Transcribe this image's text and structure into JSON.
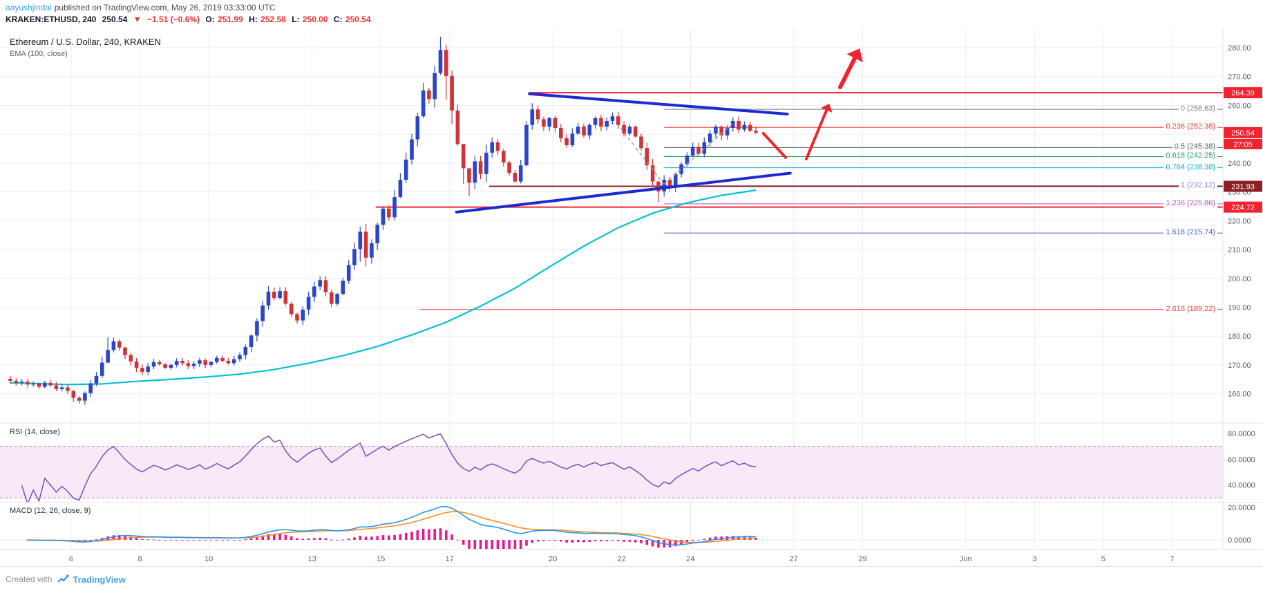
{
  "header": {
    "author": "aayushjindal",
    "publish_info": "published on TradingView.com, May 26, 2019 03:33:00 UTC",
    "symbol_line": {
      "symbol": "KRAKEN:ETHUSD, 240",
      "last_price": "250.54",
      "arrow": "▼",
      "change": "−1.51 (−0.6%)",
      "open_label": "O:",
      "open": "251.99",
      "high_label": "H:",
      "high": "252.58",
      "low_label": "L:",
      "low": "250.00",
      "close_label": "C:",
      "close": "250.54"
    }
  },
  "legends": {
    "main": "Ethereum / U.S. Dollar, 240, KRAKEN",
    "ema": "EMA (100, close)",
    "rsi": "RSI (14, close)",
    "macd": "MACD (12, 26, close, 9)"
  },
  "footer": {
    "created_with": "Created with",
    "brand": "TradingView"
  },
  "chart_data": {
    "type": "candlestick",
    "title": "Ethereum / U.S. Dollar, 240, KRAKEN",
    "exchange": "KRAKEN",
    "symbol": "ETHUSD",
    "interval_minutes": 240,
    "price_axis": {
      "ticks": [
        160,
        170,
        180,
        190,
        200,
        210,
        220,
        230,
        240,
        250,
        260,
        270,
        280
      ],
      "ylim": [
        151,
        287
      ]
    },
    "time_axis": {
      "ticks": [
        {
          "label": "6",
          "i": 10.6
        },
        {
          "label": "8",
          "i": 22.6
        },
        {
          "label": "10",
          "i": 34.6
        },
        {
          "label": "13",
          "i": 52.6
        },
        {
          "label": "15",
          "i": 64.6
        },
        {
          "label": "17",
          "i": 76.6
        },
        {
          "label": "20",
          "i": 94.6
        },
        {
          "label": "22",
          "i": 106.6
        },
        {
          "label": "24",
          "i": 118.6
        },
        {
          "label": "27",
          "i": 136.6
        },
        {
          "label": "29",
          "i": 148.6
        },
        {
          "label": "Jun",
          "i": 166.6
        },
        {
          "label": "3",
          "i": 178.6
        },
        {
          "label": "5",
          "i": 190.6
        },
        {
          "label": "7",
          "i": 202.6
        }
      ]
    },
    "candles": {
      "open_first": 165.2,
      "closes": [
        164.5,
        163.8,
        164.2,
        163.2,
        163.6,
        162.4,
        163.8,
        162.9,
        161.6,
        162.2,
        161.0,
        158.6,
        157.6,
        160.2,
        163.6,
        166.2,
        170.8,
        175.2,
        178.2,
        176.0,
        173.4,
        171.2,
        169.0,
        167.6,
        169.4,
        171.0,
        170.2,
        169.0,
        170.0,
        171.4,
        170.6,
        169.6,
        170.4,
        171.6,
        170.0,
        171.0,
        172.4,
        171.4,
        170.6,
        172.0,
        173.4,
        176.2,
        180.2,
        185.2,
        190.6,
        195.4,
        193.2,
        195.6,
        191.2,
        187.6,
        185.4,
        189.2,
        193.6,
        197.2,
        199.4,
        195.2,
        191.2,
        194.6,
        199.2,
        204.6,
        210.2,
        216.2,
        207.2,
        212.2,
        218.6,
        224.2,
        221.2,
        228.2,
        234.2,
        241.2,
        248.2,
        256.2,
        265.2,
        262.2,
        271.2,
        279.2,
        270.2,
        258.2,
        246.6,
        238.2,
        233.2,
        240.6,
        236.2,
        243.6,
        247.2,
        244.2,
        240.2,
        236.6,
        233.6,
        239.2,
        253.2,
        258.6,
        255.2,
        252.6,
        255.6,
        252.2,
        248.6,
        246.2,
        250.2,
        252.6,
        249.6,
        253.2,
        255.6,
        252.6,
        254.6,
        256.2,
        253.2,
        250.2,
        252.6,
        249.2,
        245.2,
        239.2,
        233.6,
        230.2,
        234.2,
        231.6,
        236.2,
        239.6,
        242.6,
        245.6,
        243.2,
        247.2,
        250.2,
        252.6,
        249.6,
        252.2,
        254.6,
        251.6,
        253.2,
        251.2,
        250.54
      ],
      "wick_overrides": {
        "11": [
          161.2,
          157.2
        ],
        "17": [
          179.6,
          170.6
        ],
        "61": [
          217.9,
          205.8
        ],
        "72": [
          267.8,
          255.6
        ],
        "75": [
          283.8,
          270.6
        ],
        "76": [
          281.0,
          262.0
        ],
        "77": [
          272.0,
          253.5
        ],
        "79": [
          241.5,
          232.8
        ],
        "80": [
          237.0,
          228.5
        ],
        "90": [
          254.5,
          238.8
        ],
        "113": [
          233.8,
          226.4
        ],
        "130": [
          252.6,
          250.0
        ]
      }
    },
    "ema100": [
      [
        0,
        163.8
      ],
      [
        10,
        163.2
      ],
      [
        16,
        163.4
      ],
      [
        22,
        164.3
      ],
      [
        28,
        165.0
      ],
      [
        34,
        165.8
      ],
      [
        40,
        166.8
      ],
      [
        46,
        168.4
      ],
      [
        52,
        170.6
      ],
      [
        58,
        173.2
      ],
      [
        64,
        176.4
      ],
      [
        70,
        180.4
      ],
      [
        76,
        184.8
      ],
      [
        82,
        190.4
      ],
      [
        88,
        196.6
      ],
      [
        94,
        204.0
      ],
      [
        100,
        211.2
      ],
      [
        106,
        217.6
      ],
      [
        112,
        222.6
      ],
      [
        118,
        226.2
      ],
      [
        124,
        228.8
      ],
      [
        130,
        230.6
      ]
    ],
    "indicators": {
      "rsi": {
        "period": 14,
        "source": "close",
        "axis_levels": [
          80,
          60,
          40
        ],
        "band": [
          70,
          30
        ]
      },
      "macd": {
        "fast": 12,
        "slow": 26,
        "source": "close",
        "signal": 9,
        "axis_levels": [
          20,
          0
        ]
      }
    },
    "price_labels": [
      {
        "text": "264.39",
        "price": 264.39,
        "bg": "#f0232e"
      },
      {
        "text": "250.54",
        "price": 250.54,
        "bg": "#f0232e"
      },
      {
        "text": "27:05",
        "price": 250.54,
        "offset": 17,
        "h": 15,
        "bg": "#f0232e"
      },
      {
        "text": "231.93",
        "price": 231.93,
        "bg": "#8c2026"
      },
      {
        "text": "224.72",
        "price": 224.72,
        "bg": "#f0232e"
      }
    ],
    "fib_i_start": 114,
    "fib_levels": [
      {
        "label": "0 (258.63)",
        "price": 258.63,
        "color": "#787b86"
      },
      {
        "label": "0.236 (252.38)",
        "price": 252.38,
        "color": "#ef3e3e"
      },
      {
        "label": "0.5 (245.38)",
        "price": 245.38,
        "color": "#56616b"
      },
      {
        "label": "0.618 (242.25)",
        "price": 242.25,
        "color": "#27a05c"
      },
      {
        "label": "0.764 (238.38)",
        "price": 238.38,
        "color": "#00b0c9"
      },
      {
        "label": "1 (232.12)",
        "price": 232.12,
        "color": "#8d7cc2"
      },
      {
        "label": "1.236 (225.86)",
        "price": 225.86,
        "color": "#bb4bc7"
      },
      {
        "label": "1.618 (215.74)",
        "price": 215.74,
        "color": "#4a5fd0"
      },
      {
        "label": "2.618 (189.22)",
        "price": 189.22,
        "color": "#ef3e3e",
        "i_start": 71.4
      }
    ],
    "rays": [
      {
        "price": 264.39,
        "i_start": 90.5,
        "color": "#f0232e",
        "width": 2
      },
      {
        "price": 231.93,
        "i_start": 83.5,
        "color": "#8c2026",
        "width": 2
      },
      {
        "price": 224.72,
        "i_start": 63.7,
        "color": "#f0232e",
        "width": 2
      }
    ],
    "trendlines": [
      {
        "i1": 90.5,
        "p1": 264.0,
        "i2": 135.5,
        "p2": 257.0
      },
      {
        "i1": 77.8,
        "p1": 223.0,
        "i2": 136.0,
        "p2": 236.5
      }
    ],
    "dashed_lines": [
      {
        "i1": 106.4,
        "p1": 252.2,
        "i2": 114.0,
        "p2": 232.6
      },
      {
        "i1": 114.0,
        "p1": 232.6,
        "i2": 126.1,
        "p2": 253.9
      }
    ],
    "arrows": [
      {
        "i1": 131.3,
        "p1": 250.3,
        "i2": 135.2,
        "p2": 241.9,
        "width": 4,
        "head": false
      },
      {
        "i1": 138.8,
        "p1": 241.4,
        "i2": 142.8,
        "p2": 260.6,
        "width": 4,
        "head": true
      },
      {
        "i1": 144.7,
        "p1": 266.3,
        "i2": 148.1,
        "p2": 279.7,
        "width": 6,
        "head": true
      }
    ],
    "colors": {
      "up": "#2b46c9",
      "down": "#cf3338",
      "ema": "#00c2d4",
      "grid": "#e9edf4",
      "axis_text": "#555b66",
      "trendline": "#1b2bd0",
      "arrow": "#f0232e",
      "rsi": "#7e57c2",
      "rsi_band_fill": "#f7e9f5",
      "rsi_band_line": "#b57fc6",
      "macd": "#2196f3",
      "macd_signal": "#ff8d1a",
      "hist": "#ea1889",
      "separator": "#e0e3eb",
      "dashed": "#9aa0a6"
    }
  }
}
